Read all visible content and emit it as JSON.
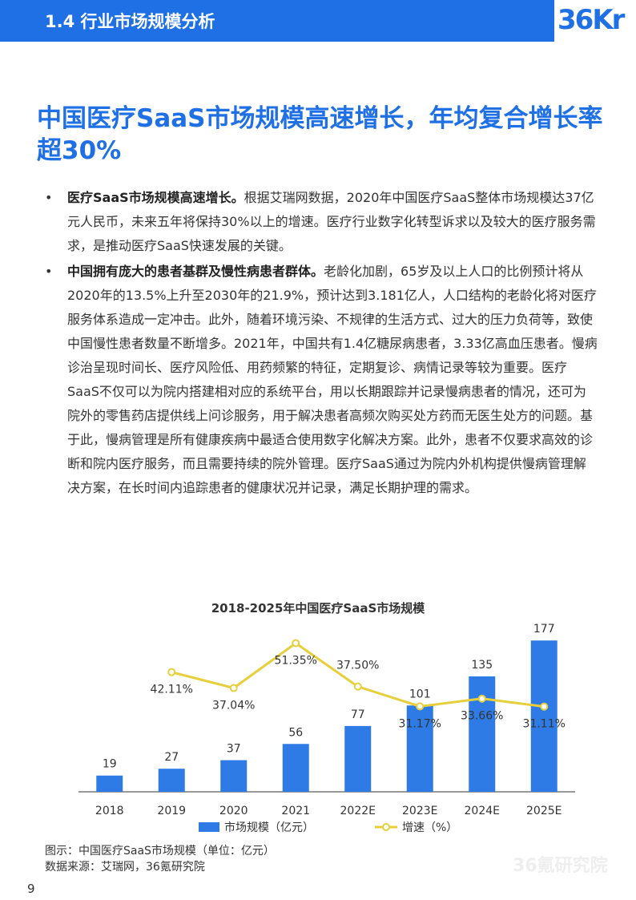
{
  "header": {
    "section_title": "1.4 行业市场规模分析",
    "logo_text": "36Kr"
  },
  "headline": "中国医疗SaaS市场规模高速增长，年均复合增长率超30%",
  "bullets": [
    {
      "lead": "医疗SaaS市场规模高速增长。",
      "text": "根据艾瑞网数据，2020年中国医疗SaaS整体市场规模达37亿元人民币，未来五年将保持30%以上的增速。医疗行业数字化转型诉求以及较大的医疗服务需求，是推动医疗SaaS快速发展的关键。"
    },
    {
      "lead": "中国拥有庞大的患者基群及慢性病患者群体。",
      "text": "老龄化加剧，65岁及以上人口的比例预计将从2020年的13.5%上升至2030年的21.9%，预计达到3.181亿人，人口结构的老龄化将对医疗服务体系造成一定冲击。此外，随着环境污染、不规律的生活方式、过大的压力负荷等，致使中国慢性患者数量不断增多。2021年，中国共有1.4亿糖尿病患者，3.33亿高血压患者。慢病诊治呈现时间长、医疗风险低、用药频繁的特征，定期复诊、病情记录等较为重要。医疗SaaS不仅可以为院内搭建相对应的系统平台，用以长期跟踪并记录慢病患者的情况，还可为院外的零售药店提供线上问诊服务，用于解决患者高频次购买处方药而无医生处方的问题。基于此，慢病管理是所有健康疾病中最适合使用数字化解决方案。此外，患者不仅要求高效的诊断和院内医疗服务，而且需要持续的院外管理。医疗SaaS通过为院内外机构提供慢病管理解决方案，在长时间内追踪患者的健康状况并记录，满足长期护理的需求。"
    }
  ],
  "chart_data": {
    "type": "bar",
    "title": "2018-2025年中国医疗SaaS市场规模",
    "categories": [
      "2018",
      "2019",
      "2020",
      "2021",
      "2022E",
      "2023E",
      "2024E",
      "2025E"
    ],
    "series": [
      {
        "name": "市场规模（亿元）",
        "type": "bar",
        "color": "#2e7be6",
        "values": [
          19,
          27,
          37,
          56,
          77,
          101,
          135,
          177
        ],
        "labels": [
          "19",
          "27",
          "37",
          "56",
          "77",
          "101",
          "135",
          "177"
        ]
      },
      {
        "name": "增速（%）",
        "type": "line",
        "color": "#e6cf3a",
        "values": [
          null,
          42.11,
          37.04,
          51.35,
          37.5,
          31.17,
          33.66,
          31.11
        ],
        "labels": [
          "",
          "42.11%",
          "37.04%",
          "51.35%",
          "37.50%",
          "31.17%",
          "33.66%",
          "31.11%"
        ]
      }
    ],
    "legend": {
      "position": "bottom"
    },
    "grid": false
  },
  "caption": {
    "figure": "图示：中国医疗SaaS市场规模（单位：亿元）",
    "source": "数据来源：艾瑞网，36氪研究院"
  },
  "page_number": "9",
  "watermark_text": "36氪研究院"
}
